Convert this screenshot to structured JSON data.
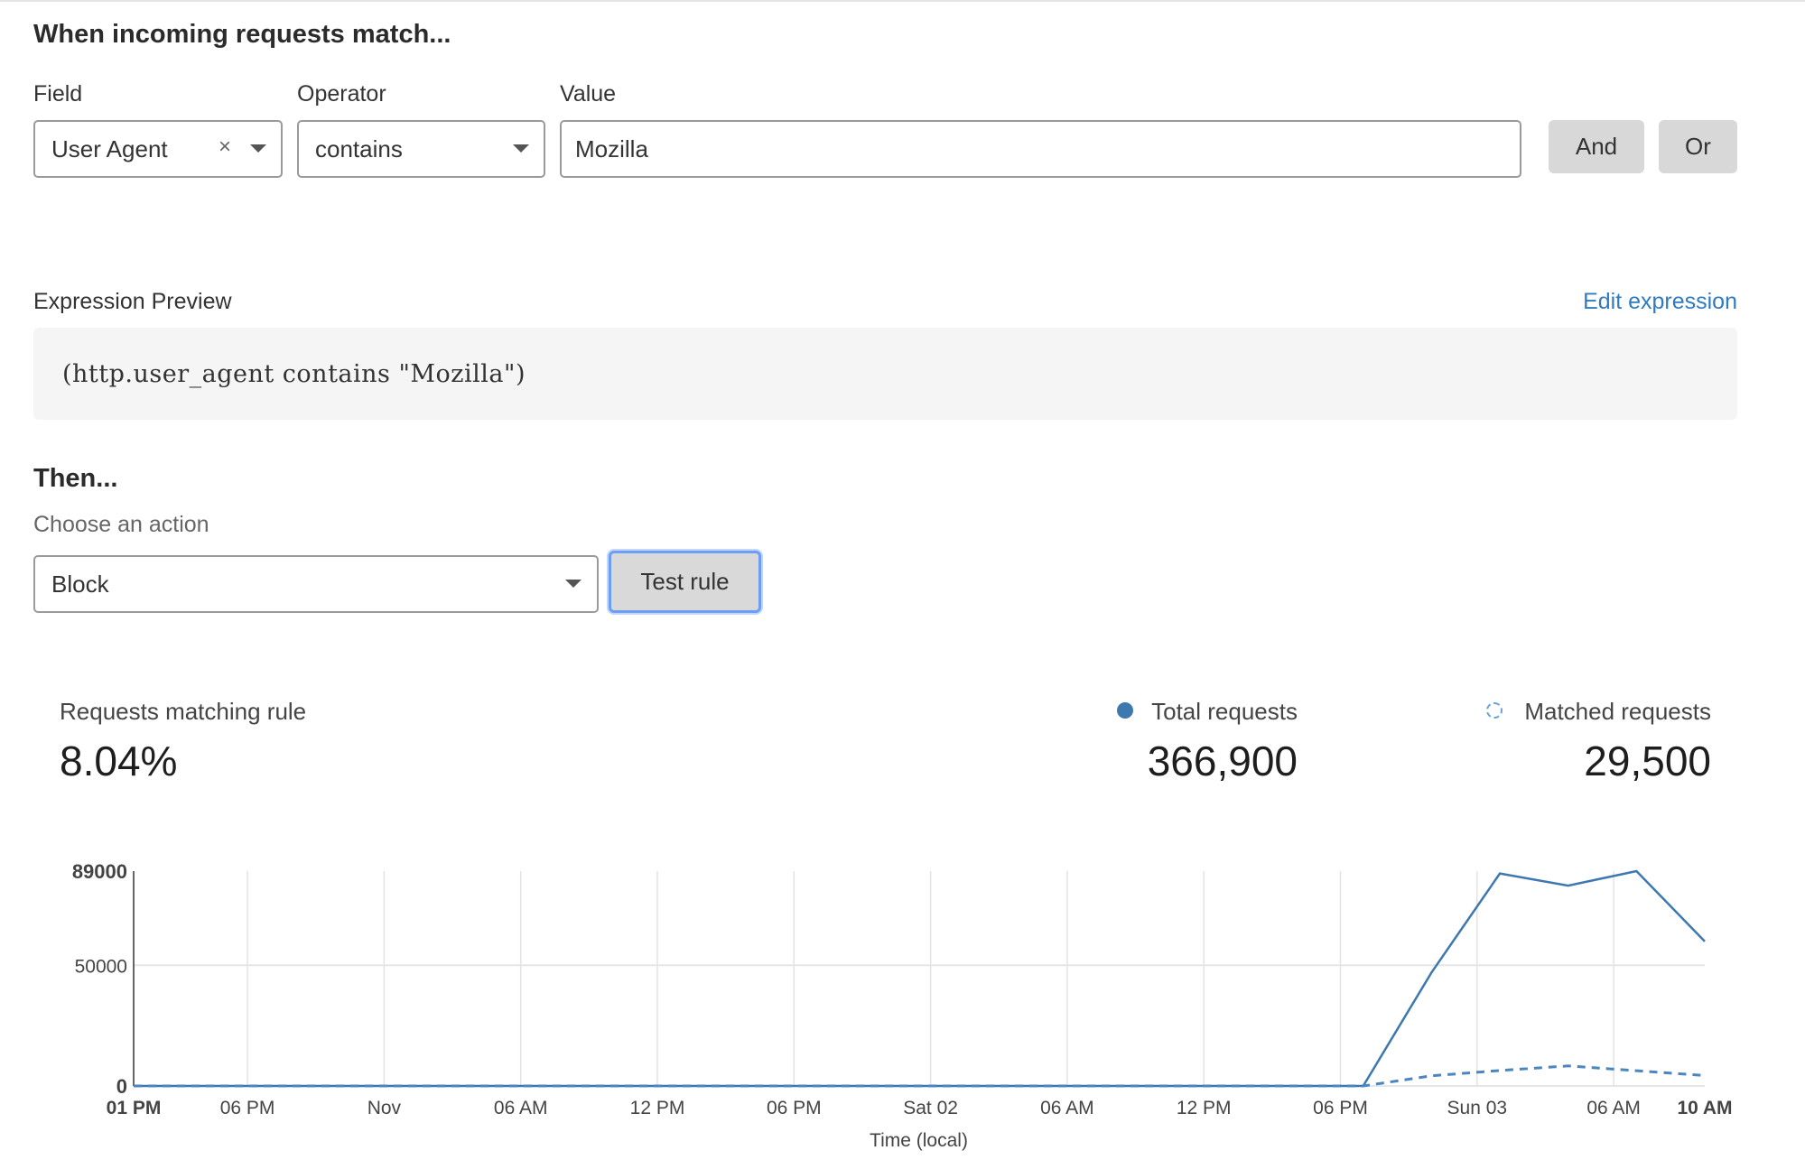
{
  "match": {
    "heading": "When incoming requests match...",
    "field_label": "Field",
    "operator_label": "Operator",
    "value_label": "Value",
    "field_value": "User Agent",
    "clear_glyph": "×",
    "operator_value": "contains",
    "value_value": "Mozilla",
    "and_label": "And",
    "or_label": "Or"
  },
  "expression": {
    "label": "Expression Preview",
    "edit_link": "Edit expression",
    "code": "(http.user_agent contains \"Mozilla\")"
  },
  "then": {
    "heading": "Then...",
    "action_label": "Choose an action",
    "action_value": "Block",
    "test_button": "Test rule"
  },
  "stats": {
    "matching_label": "Requests matching rule",
    "matching_value": "8.04%",
    "total_label": "Total requests",
    "total_value": "366,900",
    "matched_label": "Matched requests",
    "matched_value": "29,500"
  },
  "colors": {
    "accent": "#3d78ae",
    "link": "#2f7bbf",
    "focus": "#6d9ef5"
  },
  "chart_data": {
    "type": "line",
    "xlabel": "Time (local)",
    "ylabel": "",
    "ylim": [
      0,
      89000
    ],
    "yticks": [
      "0",
      "50000",
      "89000"
    ],
    "xticks": [
      "01 PM",
      "06 PM",
      "Nov",
      "06 AM",
      "12 PM",
      "06 PM",
      "Sat 02",
      "06 AM",
      "12 PM",
      "06 PM",
      "Sun 03",
      "06 AM",
      "10 AM"
    ],
    "x": [
      "Oct 31 13:00",
      "Oct 31 16:00",
      "Oct 31 19:00",
      "Oct 31 22:00",
      "Nov 1 01:00",
      "Nov 1 04:00",
      "Nov 1 07:00",
      "Nov 1 10:00",
      "Nov 1 13:00",
      "Nov 1 16:00",
      "Nov 1 19:00",
      "Nov 1 22:00",
      "Nov 2 01:00",
      "Nov 2 04:00",
      "Nov 2 07:00",
      "Nov 2 10:00",
      "Nov 2 13:00",
      "Nov 2 16:00",
      "Nov 2 19:00",
      "Nov 2 22:00",
      "Nov 3 01:00",
      "Nov 3 04:00",
      "Nov 3 07:00",
      "Nov 3 10:00"
    ],
    "series": [
      {
        "name": "Total requests",
        "style": "solid",
        "values": [
          0,
          0,
          0,
          0,
          0,
          0,
          0,
          0,
          0,
          0,
          0,
          0,
          0,
          0,
          0,
          0,
          0,
          0,
          0,
          47000,
          88000,
          83000,
          89000,
          59900
        ]
      },
      {
        "name": "Matched requests",
        "style": "dashed",
        "values": [
          0,
          0,
          0,
          0,
          0,
          0,
          0,
          0,
          0,
          0,
          0,
          0,
          0,
          0,
          0,
          0,
          0,
          0,
          0,
          4200,
          6400,
          8300,
          6300,
          4300
        ]
      }
    ],
    "grid": "vertical lines + horizontal at 50000",
    "legend": "top-right"
  }
}
